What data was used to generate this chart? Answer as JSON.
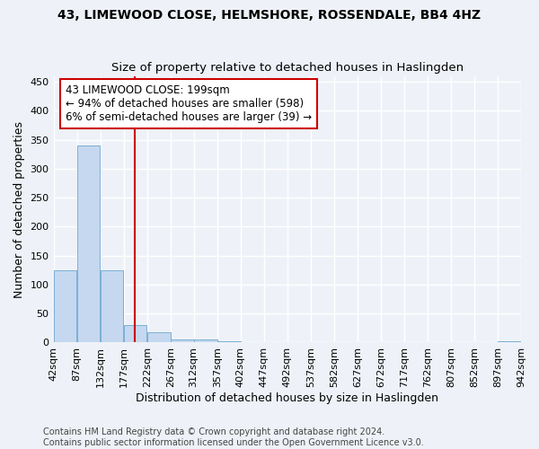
{
  "title": "43, LIMEWOOD CLOSE, HELMSHORE, ROSSENDALE, BB4 4HZ",
  "subtitle": "Size of property relative to detached houses in Haslingden",
  "xlabel": "Distribution of detached houses by size in Haslingden",
  "ylabel": "Number of detached properties",
  "bar_color": "#c5d8f0",
  "bar_edge_color": "#7aafd4",
  "bins": [
    42,
    87,
    132,
    177,
    222,
    267,
    312,
    357,
    402,
    447,
    492,
    537,
    582,
    627,
    672,
    717,
    762,
    807,
    852,
    897,
    942
  ],
  "bar_values": [
    125,
    340,
    125,
    30,
    17,
    6,
    5,
    2,
    1,
    1,
    1,
    0,
    0,
    0,
    0,
    0,
    0,
    0,
    0,
    2
  ],
  "property_size": 199,
  "annotation_line1": "43 LIMEWOOD CLOSE: 199sqm",
  "annotation_line2": "← 94% of detached houses are smaller (598)",
  "annotation_line3": "6% of semi-detached houses are larger (39) →",
  "annotation_box_color": "#ffffff",
  "annotation_box_edge": "#cc0000",
  "vline_color": "#cc0000",
  "ylim": [
    0,
    460
  ],
  "yticks": [
    0,
    50,
    100,
    150,
    200,
    250,
    300,
    350,
    400,
    450
  ],
  "footnote": "Contains HM Land Registry data © Crown copyright and database right 2024.\nContains public sector information licensed under the Open Government Licence v3.0.",
  "bg_color": "#eef2f8",
  "grid_color": "#ffffff",
  "title_fontsize": 10,
  "subtitle_fontsize": 9.5,
  "axis_label_fontsize": 9,
  "tick_fontsize": 8,
  "annot_fontsize": 8.5,
  "footnote_fontsize": 7
}
